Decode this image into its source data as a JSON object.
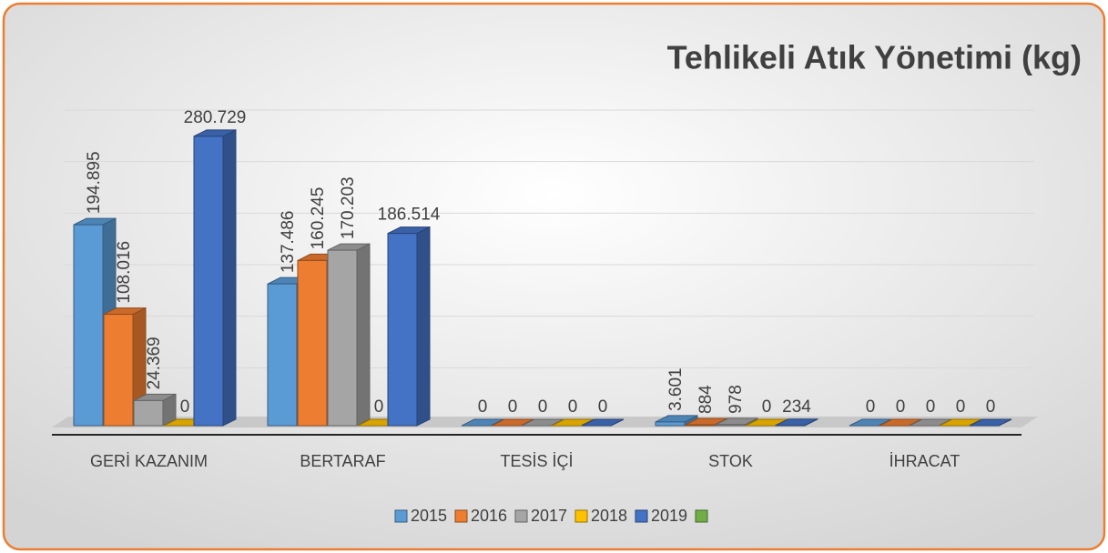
{
  "chart_data": {
    "type": "bar3d",
    "title": "Tehlikeli Atık Yönetimi (kg)",
    "categories": [
      "GERİ KAZANIM",
      "BERTARAF",
      "TESİS İÇİ",
      "STOK",
      "İHRACAT"
    ],
    "series": [
      {
        "name": "2015",
        "color": "#5b9bd5",
        "values": [
          194895,
          137486,
          0,
          3601,
          0
        ],
        "value_labels": [
          "194.895",
          "137.486",
          "0",
          "3.601",
          "0"
        ]
      },
      {
        "name": "2016",
        "color": "#ed7d31",
        "values": [
          108016,
          160245,
          0,
          884,
          0
        ],
        "value_labels": [
          "108.016",
          "160.245",
          "0",
          "884",
          "0"
        ]
      },
      {
        "name": "2017",
        "color": "#a5a5a5",
        "values": [
          24369,
          170203,
          0,
          978,
          0
        ],
        "value_labels": [
          "24.369",
          "170.203",
          "0",
          "978",
          "0"
        ]
      },
      {
        "name": "2018",
        "color": "#ffc000",
        "values": [
          0,
          0,
          0,
          0,
          0
        ],
        "value_labels": [
          "0",
          "0",
          "0",
          "0",
          "0"
        ]
      },
      {
        "name": "2019",
        "color": "#4472c4",
        "values": [
          280729,
          186514,
          0,
          234,
          0
        ],
        "value_labels": [
          "280.729",
          "186.514",
          "0",
          "234",
          "0"
        ]
      },
      {
        "name": null,
        "color": "#70ad47",
        "values": [
          null,
          null,
          null,
          null,
          null
        ]
      }
    ],
    "ylim": [
      0,
      300000
    ],
    "yticks": [
      0,
      50000,
      100000,
      150000,
      200000,
      250000,
      300000
    ],
    "grid": true
  }
}
